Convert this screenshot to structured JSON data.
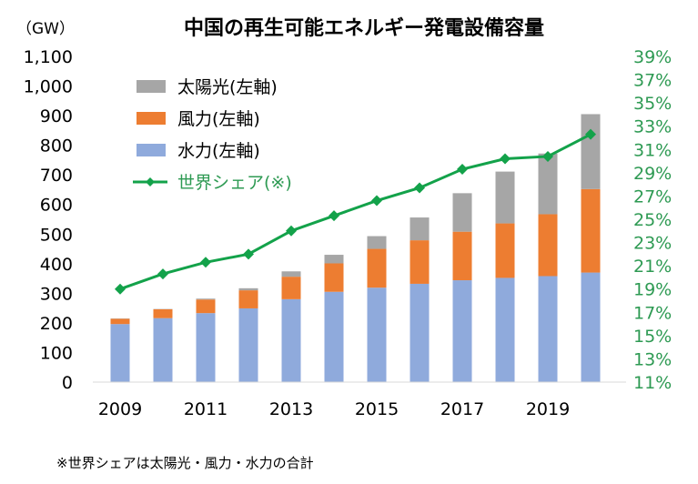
{
  "chart_data": {
    "type": "bar",
    "stacked": true,
    "title": "中国の再生可能エネルギー発電設備容量",
    "unit": "（GW）",
    "x": [
      2009,
      2010,
      2011,
      2012,
      2013,
      2014,
      2015,
      2016,
      2017,
      2018,
      2019,
      2020
    ],
    "x_tick_labels": [
      "2009",
      "2011",
      "2013",
      "2015",
      "2017",
      "2019"
    ],
    "y_left_ticks": [
      "0",
      "100",
      "200",
      "300",
      "400",
      "500",
      "600",
      "700",
      "800",
      "900",
      "1,000",
      "1,100"
    ],
    "y_left_range": [
      0,
      1100
    ],
    "y_right_ticks": [
      "11%",
      "13%",
      "15%",
      "17%",
      "19%",
      "21%",
      "23%",
      "25%",
      "27%",
      "29%",
      "31%",
      "33%",
      "35%",
      "37%",
      "39%"
    ],
    "y_right_range": [
      11,
      39
    ],
    "series": [
      {
        "name": "水力(左軸)",
        "axis": "left",
        "color": "#8faadc",
        "values": [
          196,
          216,
          233,
          249,
          280,
          305,
          319,
          332,
          344,
          352,
          358,
          370
        ]
      },
      {
        "name": "風力(左軸)",
        "axis": "left",
        "color": "#ed7d31",
        "values": [
          18,
          30,
          46,
          61,
          76,
          96,
          131,
          147,
          164,
          184,
          209,
          282
        ]
      },
      {
        "name": "太陽光(左軸)",
        "axis": "left",
        "color": "#a6a6a6",
        "values": [
          1,
          1,
          3,
          7,
          18,
          29,
          43,
          77,
          130,
          175,
          205,
          253
        ]
      },
      {
        "name": "世界シェア(※)",
        "axis": "right",
        "type": "line",
        "color": "#13a24a",
        "values": [
          19.0,
          20.3,
          21.3,
          22.0,
          24.0,
          25.3,
          26.6,
          27.7,
          29.3,
          30.2,
          30.4,
          32.3
        ]
      }
    ],
    "legend_order": [
      "太陽光(左軸)",
      "風力(左軸)",
      "水力(左軸)",
      "世界シェア(※)"
    ],
    "legend_position": "top-left",
    "grid": false
  },
  "footnote": "※世界シェアは太陽光・風力・水力の合計"
}
